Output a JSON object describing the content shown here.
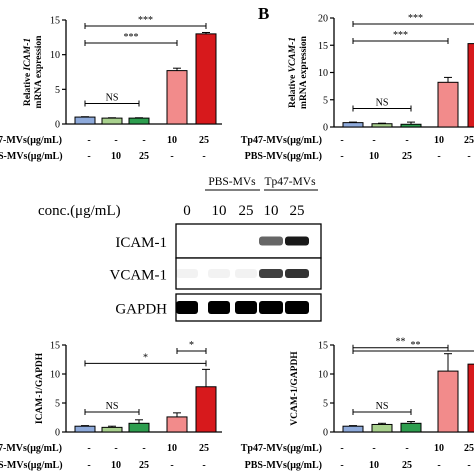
{
  "panels": {
    "a_label": "",
    "b_label": "B"
  },
  "colors": {
    "bar_fill": [
      "#8eaadb",
      "#a9d18e",
      "#2e9e4f",
      "#f28b8b",
      "#d7191c"
    ],
    "band": "#000000"
  },
  "treatment_table": {
    "tp47_label": "Tp47-MVs(μg/mL)",
    "pbs_label": "PBS-MVs(μg/mL)",
    "tp47_label_left_cropped": "7-MVs(μg/mL)",
    "pbs_label_left_cropped": "S-MVs(μg/mL)",
    "tp47_values": [
      "-",
      "-",
      "-",
      "10",
      "25"
    ],
    "pbs_values": [
      "-",
      "10",
      "25",
      "-",
      "-"
    ]
  },
  "blot": {
    "conc_label": "conc.(μg/mL)",
    "group_pbs": "PBS-MVs",
    "group_tp47": "Tp47-MVs",
    "lane_concs": [
      "0",
      "10",
      "25",
      "10",
      "25"
    ],
    "rows": [
      {
        "label": "ICAM-1",
        "intensity": [
          0.0,
          0.0,
          0.0,
          0.6,
          0.9
        ]
      },
      {
        "label": "VCAM-1",
        "intensity": [
          0.05,
          0.05,
          0.05,
          0.75,
          0.8
        ]
      },
      {
        "label": "GAPDH",
        "intensity": [
          1.0,
          1.0,
          1.0,
          1.0,
          1.0
        ]
      }
    ]
  },
  "chart_data": [
    {
      "type": "bar",
      "panel": "A-top",
      "ylabel_line1": "Relative ICAM-1",
      "ylabel_line2": "mRNA expression",
      "ylim": [
        0,
        15
      ],
      "yticks": [
        "0",
        "5",
        "10",
        "15"
      ],
      "values": [
        1.0,
        0.85,
        0.85,
        7.7,
        13.0
      ],
      "errors": [
        0.05,
        0.05,
        0.05,
        0.35,
        0.2
      ],
      "significance": [
        {
          "from": 0,
          "to": 2,
          "label": "NS"
        },
        {
          "from": 0,
          "to": 3,
          "label": "***"
        },
        {
          "from": 0,
          "to": 4,
          "label": "***"
        }
      ]
    },
    {
      "type": "bar",
      "panel": "B-top",
      "ylabel_line1": "Relative VCAM-1",
      "ylabel_line2": "mRNA expression",
      "ylim": [
        0,
        20
      ],
      "yticks": [
        "0",
        "5",
        "10",
        "15",
        "20"
      ],
      "values": [
        0.8,
        0.6,
        0.5,
        8.2,
        15.3
      ],
      "errors": [
        0.1,
        0.1,
        0.4,
        0.9,
        0.6
      ],
      "significance": [
        {
          "from": 0,
          "to": 2,
          "label": "NS"
        },
        {
          "from": 0,
          "to": 3,
          "label": "***"
        },
        {
          "from": 0,
          "to": 4,
          "label": "***"
        }
      ]
    },
    {
      "type": "bar",
      "panel": "C-bottom-left",
      "ylabel": "ICAM-1/GAPDH",
      "ylim": [
        0,
        15
      ],
      "yticks": [
        "0",
        "5",
        "10",
        "15"
      ],
      "values": [
        1.0,
        0.8,
        1.5,
        2.6,
        7.8
      ],
      "errors": [
        0.1,
        0.2,
        0.6,
        0.7,
        3.0
      ],
      "significance": [
        {
          "from": 0,
          "to": 2,
          "label": "NS"
        },
        {
          "from": 0,
          "to": 4,
          "label": "*"
        },
        {
          "from": 3,
          "to": 4,
          "label": "*"
        }
      ]
    },
    {
      "type": "bar",
      "panel": "D-bottom-right",
      "ylabel": "VCAM-1/GAPDH",
      "ylim": [
        0,
        15
      ],
      "yticks": [
        "0",
        "5",
        "10",
        "15"
      ],
      "values": [
        1.0,
        1.3,
        1.5,
        10.5,
        11.7
      ],
      "errors": [
        0.1,
        0.2,
        0.3,
        3.0,
        1.5
      ],
      "significance": [
        {
          "from": 0,
          "to": 2,
          "label": "NS"
        },
        {
          "from": 0,
          "to": 3,
          "label": "**"
        },
        {
          "from": 0,
          "to": 4,
          "label": "**"
        }
      ]
    }
  ]
}
